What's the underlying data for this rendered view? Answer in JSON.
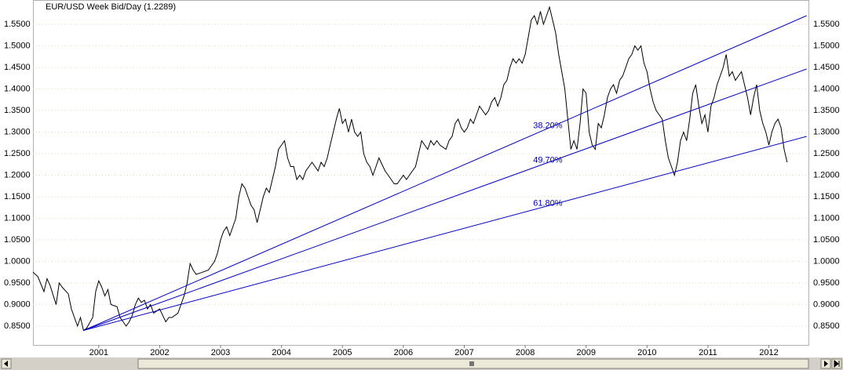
{
  "chart_data": {
    "type": "line",
    "title": "EUR/USD Week Bid/Day (1.2289)",
    "xlim": [
      1999.92,
      2012.65
    ],
    "xticks": [
      2001,
      2002,
      2003,
      2004,
      2005,
      2006,
      2007,
      2008,
      2009,
      2010,
      2011,
      2012
    ],
    "ylim": [
      0.8064,
      1.6064
    ],
    "yticks": [
      {
        "value": 0.85,
        "label": "0.8500"
      },
      {
        "value": 0.9,
        "label": "0.9000"
      },
      {
        "value": 0.95,
        "label": "0.9500"
      },
      {
        "value": 1.0,
        "label": "1.0000"
      },
      {
        "value": 1.05,
        "label": "1.0500"
      },
      {
        "value": 1.1,
        "label": "1.1000"
      },
      {
        "value": 1.15,
        "label": "1.1500"
      },
      {
        "value": 1.2,
        "label": "1.2000"
      },
      {
        "value": 1.25,
        "label": "1.2500"
      },
      {
        "value": 1.3,
        "label": "1.3000"
      },
      {
        "value": 1.35,
        "label": "1.3500"
      },
      {
        "value": 1.4,
        "label": "1.4000"
      },
      {
        "value": 1.45,
        "label": "1.4500"
      },
      {
        "value": 1.5,
        "label": "1.5000"
      },
      {
        "value": 1.55,
        "label": "1.5500"
      }
    ],
    "grid": true,
    "x": [
      1999.92,
      2000.0,
      2000.1,
      2000.15,
      2000.2,
      2000.3,
      2000.35,
      2000.4,
      2000.5,
      2000.55,
      2000.6,
      2000.65,
      2000.7,
      2000.75,
      2000.8,
      2000.9,
      2000.95,
      2001.0,
      2001.05,
      2001.1,
      2001.15,
      2001.2,
      2001.3,
      2001.35,
      2001.4,
      2001.45,
      2001.5,
      2001.55,
      2001.6,
      2001.65,
      2001.7,
      2001.75,
      2001.8,
      2001.85,
      2001.9,
      2001.95,
      2002.0,
      2002.05,
      2002.1,
      2002.15,
      2002.2,
      2002.3,
      2002.35,
      2002.4,
      2002.45,
      2002.5,
      2002.55,
      2002.6,
      2002.7,
      2002.8,
      2002.9,
      2002.95,
      2003.0,
      2003.05,
      2003.1,
      2003.15,
      2003.2,
      2003.25,
      2003.3,
      2003.35,
      2003.4,
      2003.45,
      2003.5,
      2003.55,
      2003.6,
      2003.65,
      2003.7,
      2003.75,
      2003.8,
      2003.9,
      2003.95,
      2004.0,
      2004.05,
      2004.1,
      2004.15,
      2004.2,
      2004.25,
      2004.3,
      2004.35,
      2004.4,
      2004.45,
      2004.5,
      2004.55,
      2004.6,
      2004.65,
      2004.7,
      2004.75,
      2004.8,
      2004.85,
      2004.9,
      2004.95,
      2005.0,
      2005.05,
      2005.1,
      2005.15,
      2005.2,
      2005.25,
      2005.3,
      2005.35,
      2005.4,
      2005.45,
      2005.5,
      2005.55,
      2005.6,
      2005.7,
      2005.75,
      2005.8,
      2005.85,
      2005.9,
      2006.0,
      2006.05,
      2006.1,
      2006.15,
      2006.2,
      2006.25,
      2006.3,
      2006.35,
      2006.4,
      2006.45,
      2006.5,
      2006.55,
      2006.6,
      2006.7,
      2006.75,
      2006.8,
      2006.85,
      2006.9,
      2006.95,
      2007.0,
      2007.05,
      2007.1,
      2007.15,
      2007.2,
      2007.25,
      2007.3,
      2007.35,
      2007.4,
      2007.45,
      2007.5,
      2007.55,
      2007.6,
      2007.65,
      2007.7,
      2007.75,
      2007.8,
      2007.85,
      2007.9,
      2007.95,
      2008.0,
      2008.05,
      2008.1,
      2008.15,
      2008.2,
      2008.25,
      2008.3,
      2008.35,
      2008.4,
      2008.45,
      2008.5,
      2008.55,
      2008.6,
      2008.65,
      2008.7,
      2008.75,
      2008.8,
      2008.85,
      2008.9,
      2008.95,
      2009.0,
      2009.05,
      2009.1,
      2009.15,
      2009.2,
      2009.25,
      2009.3,
      2009.35,
      2009.4,
      2009.45,
      2009.5,
      2009.55,
      2009.6,
      2009.65,
      2009.7,
      2009.75,
      2009.8,
      2009.85,
      2009.9,
      2009.95,
      2010.0,
      2010.05,
      2010.1,
      2010.15,
      2010.2,
      2010.25,
      2010.3,
      2010.35,
      2010.4,
      2010.45,
      2010.5,
      2010.55,
      2010.6,
      2010.65,
      2010.7,
      2010.75,
      2010.8,
      2010.85,
      2010.9,
      2010.95,
      2011.0,
      2011.05,
      2011.1,
      2011.15,
      2011.2,
      2011.25,
      2011.3,
      2011.35,
      2011.4,
      2011.45,
      2011.5,
      2011.55,
      2011.6,
      2011.65,
      2011.7,
      2011.75,
      2011.8,
      2011.85,
      2011.9,
      2011.95,
      2012.0,
      2012.05,
      2012.1,
      2012.15,
      2012.2,
      2012.25,
      2012.3
    ],
    "series": [
      {
        "color": "#000000",
        "values": [
          0.975,
          0.965,
          0.93,
          0.96,
          0.945,
          0.9,
          0.95,
          0.94,
          0.925,
          0.89,
          0.87,
          0.85,
          0.87,
          0.84,
          0.845,
          0.87,
          0.93,
          0.955,
          0.94,
          0.92,
          0.935,
          0.9,
          0.895,
          0.87,
          0.86,
          0.85,
          0.86,
          0.875,
          0.9,
          0.915,
          0.905,
          0.91,
          0.89,
          0.9,
          0.88,
          0.885,
          0.89,
          0.875,
          0.86,
          0.87,
          0.87,
          0.88,
          0.9,
          0.92,
          0.95,
          0.995,
          0.98,
          0.97,
          0.975,
          0.98,
          1.0,
          1.02,
          1.05,
          1.07,
          1.08,
          1.06,
          1.08,
          1.1,
          1.15,
          1.18,
          1.17,
          1.15,
          1.13,
          1.12,
          1.09,
          1.12,
          1.15,
          1.17,
          1.16,
          1.22,
          1.26,
          1.27,
          1.28,
          1.24,
          1.22,
          1.22,
          1.19,
          1.2,
          1.19,
          1.21,
          1.22,
          1.23,
          1.22,
          1.21,
          1.23,
          1.22,
          1.24,
          1.27,
          1.3,
          1.33,
          1.355,
          1.32,
          1.33,
          1.3,
          1.33,
          1.3,
          1.29,
          1.3,
          1.25,
          1.23,
          1.22,
          1.2,
          1.22,
          1.24,
          1.21,
          1.2,
          1.19,
          1.18,
          1.18,
          1.2,
          1.19,
          1.2,
          1.21,
          1.22,
          1.25,
          1.28,
          1.27,
          1.26,
          1.28,
          1.27,
          1.28,
          1.27,
          1.26,
          1.28,
          1.29,
          1.32,
          1.33,
          1.31,
          1.3,
          1.31,
          1.33,
          1.32,
          1.34,
          1.36,
          1.35,
          1.34,
          1.35,
          1.37,
          1.38,
          1.36,
          1.38,
          1.41,
          1.42,
          1.45,
          1.47,
          1.46,
          1.47,
          1.46,
          1.48,
          1.52,
          1.56,
          1.57,
          1.55,
          1.58,
          1.55,
          1.57,
          1.59,
          1.56,
          1.53,
          1.48,
          1.44,
          1.4,
          1.33,
          1.26,
          1.28,
          1.26,
          1.32,
          1.4,
          1.39,
          1.3,
          1.27,
          1.26,
          1.32,
          1.31,
          1.34,
          1.38,
          1.4,
          1.41,
          1.39,
          1.42,
          1.43,
          1.45,
          1.47,
          1.48,
          1.5,
          1.49,
          1.5,
          1.46,
          1.44,
          1.4,
          1.37,
          1.35,
          1.34,
          1.33,
          1.28,
          1.24,
          1.22,
          1.2,
          1.23,
          1.28,
          1.3,
          1.28,
          1.33,
          1.39,
          1.41,
          1.36,
          1.32,
          1.34,
          1.3,
          1.36,
          1.38,
          1.41,
          1.43,
          1.45,
          1.48,
          1.43,
          1.44,
          1.42,
          1.43,
          1.44,
          1.41,
          1.38,
          1.34,
          1.38,
          1.41,
          1.35,
          1.32,
          1.3,
          1.27,
          1.3,
          1.32,
          1.33,
          1.31,
          1.26,
          1.23
        ]
      }
    ],
    "fan_lines": [
      {
        "label": "38.20%",
        "color": "#0000c0",
        "start": [
          2000.75,
          0.84
        ],
        "end": [
          2012.62,
          1.57
        ]
      },
      {
        "label": "49.70%",
        "color": "#0000c0",
        "start": [
          2000.75,
          0.84
        ],
        "end": [
          2012.62,
          1.4464
        ]
      },
      {
        "label": "61.80%",
        "color": "#0000c0",
        "start": [
          2000.75,
          0.84
        ],
        "end": [
          2012.62,
          1.29
        ]
      }
    ]
  }
}
